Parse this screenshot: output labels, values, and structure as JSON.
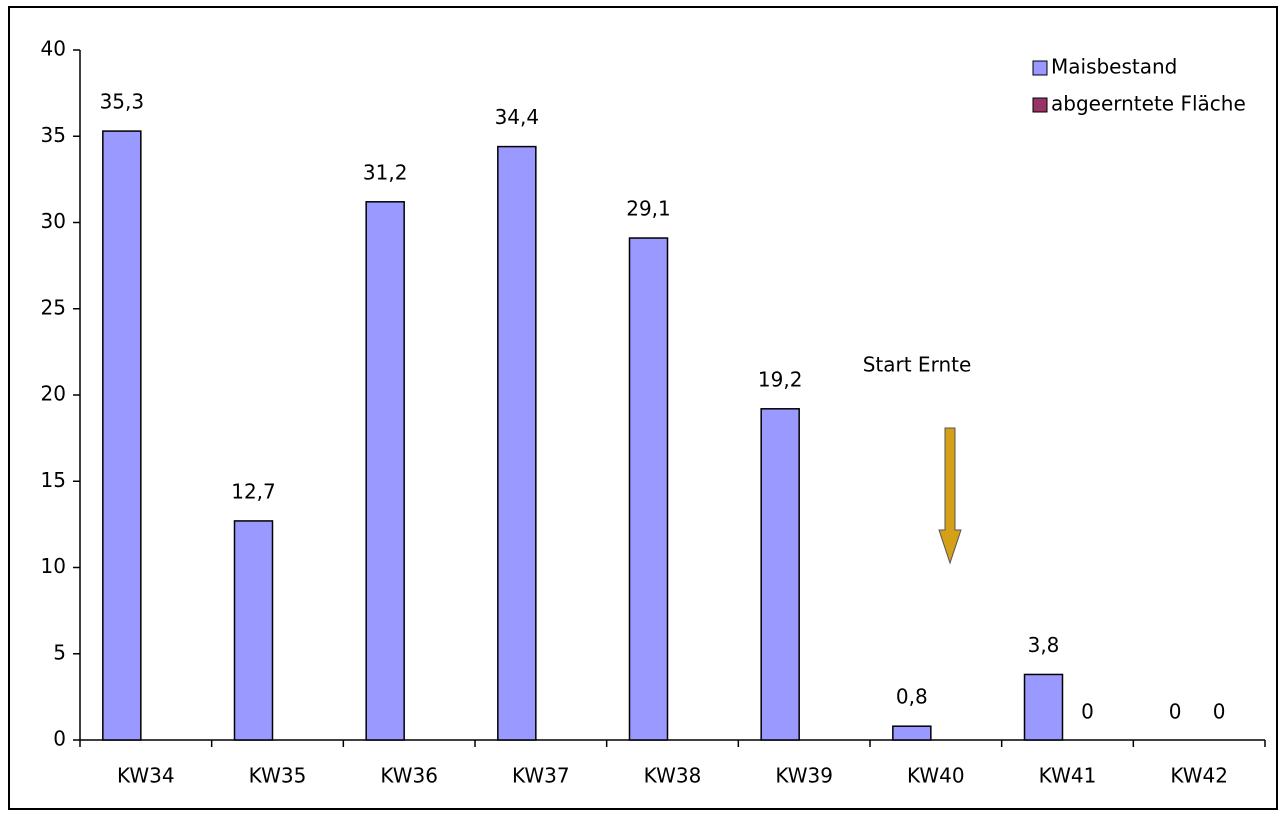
{
  "chart_data": {
    "type": "bar",
    "categories": [
      "KW34",
      "KW35",
      "KW36",
      "KW37",
      "KW38",
      "KW39",
      "KW40",
      "KW41",
      "KW42"
    ],
    "series": [
      {
        "name": "Maisbestand",
        "color": "#9999ff",
        "values": [
          35.3,
          12.7,
          31.2,
          34.4,
          29.1,
          19.2,
          0.8,
          3.8,
          0
        ],
        "value_labels": [
          "35,3",
          "12,7",
          "31,2",
          "34,4",
          "29,1",
          "19,2",
          "0,8",
          "3,8",
          "0"
        ]
      },
      {
        "name": "abgeerntete Fläche",
        "color": "#993366",
        "values": [
          null,
          null,
          null,
          null,
          null,
          null,
          null,
          0,
          0
        ]
      }
    ],
    "annotation": "Start Ernte",
    "ylim": [
      0,
      40
    ],
    "yticks": [
      0,
      5,
      10,
      15,
      20,
      25,
      30,
      35,
      40
    ],
    "grid": false,
    "legend": "top-right"
  }
}
